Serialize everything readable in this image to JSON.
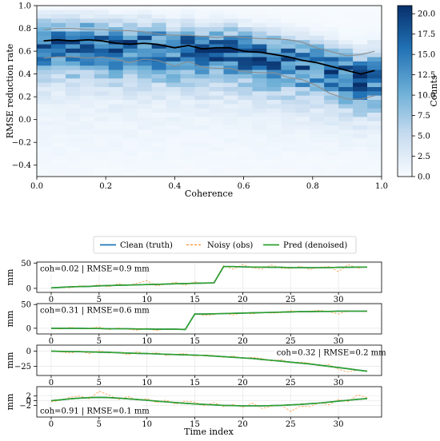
{
  "chart_data": [
    {
      "type": "heatmap",
      "xlabel": "Coherence",
      "ylabel": "RMSE reduction rate",
      "xlim": [
        0.0,
        1.0
      ],
      "ylim": [
        -0.5,
        1.0
      ],
      "xticks": [
        "0.0",
        "0.2",
        "0.4",
        "0.6",
        "0.8",
        "1.0"
      ],
      "yticks": [
        "-0.4",
        "-0.2",
        "0.0",
        "0.2",
        "0.4",
        "0.6",
        "0.8",
        "1.0"
      ],
      "x_bins": 24,
      "y_bins": 40,
      "colorbar": {
        "label": "Counts",
        "range": [
          0,
          21
        ],
        "ticks": [
          "0.0",
          "2.5",
          "5.0",
          "7.5",
          "10.0",
          "12.5",
          "15.0",
          "17.5",
          "20.0"
        ],
        "colormap": "Blues"
      },
      "series": [
        {
          "name": "median",
          "color": "#000000",
          "x": [
            0.02,
            0.06,
            0.1,
            0.15,
            0.19,
            0.23,
            0.27,
            0.31,
            0.35,
            0.4,
            0.44,
            0.48,
            0.52,
            0.56,
            0.6,
            0.65,
            0.69,
            0.73,
            0.77,
            0.81,
            0.85,
            0.9,
            0.94,
            0.98
          ],
          "y": [
            0.69,
            0.7,
            0.69,
            0.7,
            0.69,
            0.67,
            0.66,
            0.67,
            0.66,
            0.63,
            0.65,
            0.62,
            0.63,
            0.63,
            0.6,
            0.59,
            0.57,
            0.55,
            0.52,
            0.5,
            0.47,
            0.43,
            0.4,
            0.43
          ]
        },
        {
          "name": "upper quantile",
          "color": "#8c8c8c",
          "x": [
            0.02,
            0.06,
            0.1,
            0.15,
            0.19,
            0.23,
            0.27,
            0.31,
            0.35,
            0.4,
            0.44,
            0.48,
            0.52,
            0.56,
            0.6,
            0.65,
            0.69,
            0.73,
            0.77,
            0.81,
            0.85,
            0.9,
            0.94,
            0.98
          ],
          "y": [
            0.79,
            0.8,
            0.8,
            0.79,
            0.79,
            0.78,
            0.78,
            0.77,
            0.75,
            0.74,
            0.74,
            0.73,
            0.72,
            0.73,
            0.72,
            0.71,
            0.71,
            0.7,
            0.68,
            0.63,
            0.6,
            0.56,
            0.57,
            0.6
          ]
        },
        {
          "name": "lower quantile",
          "color": "#8c8c8c",
          "x": [
            0.02,
            0.06,
            0.1,
            0.15,
            0.19,
            0.23,
            0.27,
            0.31,
            0.35,
            0.4,
            0.44,
            0.48,
            0.52,
            0.56,
            0.6,
            0.65,
            0.69,
            0.73,
            0.77,
            0.81,
            0.85,
            0.9,
            0.94,
            0.98
          ],
          "y": [
            0.54,
            0.55,
            0.55,
            0.54,
            0.55,
            0.53,
            0.5,
            0.53,
            0.52,
            0.47,
            0.51,
            0.46,
            0.45,
            0.45,
            0.42,
            0.41,
            0.41,
            0.37,
            0.35,
            0.3,
            0.23,
            0.18,
            0.18,
            0.21
          ]
        }
      ]
    },
    {
      "type": "line",
      "legend": {
        "placement": "top-center",
        "entries": [
          {
            "label": "Clean (truth)",
            "color": "#1f77b4",
            "style": "solid"
          },
          {
            "label": "Noisy (obs)",
            "color": "#ff7f0e",
            "style": "dashed"
          },
          {
            "label": "Pred (denoised)",
            "color": "#2ca02c",
            "style": "solid"
          }
        ]
      },
      "xlabel": "Time index",
      "xlim": [
        -1.5,
        34.5
      ],
      "xticks": [
        "0",
        "5",
        "10",
        "15",
        "20",
        "25",
        "30"
      ],
      "panels": [
        {
          "annotation": "coh=0.02 | RMSE=0.9 mm",
          "annotation_placement": "top-left",
          "ylabel": "mm",
          "ylim": [
            -8,
            52
          ],
          "yticks": [
            "0",
            "50"
          ],
          "x": [
            0,
            1,
            2,
            3,
            4,
            5,
            6,
            7,
            8,
            9,
            10,
            11,
            12,
            13,
            14,
            15,
            16,
            17,
            18,
            19,
            20,
            21,
            22,
            23,
            24,
            25,
            26,
            27,
            28,
            29,
            30,
            31,
            32,
            33
          ],
          "clean": [
            1,
            2,
            3,
            3.5,
            4,
            5,
            5.5,
            6,
            6.5,
            7,
            7.5,
            8,
            8.5,
            9,
            9.5,
            10,
            10.5,
            11,
            43,
            43,
            42.5,
            42,
            42,
            41.5,
            41.5,
            41,
            41,
            41,
            41,
            41,
            41.5,
            41.5,
            42,
            42
          ],
          "noisy": [
            0,
            3,
            1,
            5,
            4,
            7,
            3,
            9,
            6,
            10,
            15,
            5,
            8,
            12,
            6,
            13,
            9,
            12,
            45,
            38,
            47,
            41,
            38,
            46,
            40,
            39,
            44,
            37,
            42,
            43,
            33,
            47,
            40,
            43
          ],
          "pred": [
            1,
            2,
            3,
            3.5,
            4,
            5,
            5.5,
            6,
            6.5,
            7,
            7.5,
            8,
            8.5,
            9,
            9.5,
            10,
            10.5,
            11,
            43,
            43,
            42.5,
            42,
            42,
            41.5,
            41.5,
            41,
            41,
            41,
            41,
            41,
            41.5,
            41.5,
            42,
            42
          ]
        },
        {
          "annotation": "coh=0.31 | RMSE=0.6 mm",
          "annotation_placement": "top-left",
          "ylabel": "mm",
          "ylim": [
            -12,
            52
          ],
          "yticks": [
            "0",
            "50"
          ],
          "x": [
            0,
            1,
            2,
            3,
            4,
            5,
            6,
            7,
            8,
            9,
            10,
            11,
            12,
            13,
            14,
            15,
            16,
            17,
            18,
            19,
            20,
            21,
            22,
            23,
            24,
            25,
            26,
            27,
            28,
            29,
            30,
            31,
            32,
            33
          ],
          "clean": [
            0,
            0,
            0,
            0,
            -0.5,
            -0.5,
            -1,
            -1,
            -1,
            -1.5,
            -1.5,
            -2,
            -2,
            -2,
            -2.5,
            30,
            30,
            30.5,
            31,
            31.5,
            32,
            32.5,
            33,
            33.5,
            34,
            34.5,
            35,
            35,
            35.5,
            35.5,
            36,
            36,
            36,
            36
          ],
          "noisy": [
            1,
            -2,
            2,
            -1,
            0,
            3,
            -3,
            1,
            -2,
            -4,
            0,
            -5,
            -1,
            -3,
            -2,
            31,
            27,
            29,
            32,
            28,
            33,
            30,
            34,
            32,
            33,
            37,
            34,
            36,
            38,
            35,
            30,
            37,
            36,
            35
          ],
          "pred": [
            0,
            0,
            0,
            0,
            -0.5,
            -0.5,
            -1,
            -1,
            -1,
            -1.5,
            -1.5,
            -2,
            -2,
            -2,
            -2.5,
            30,
            30,
            30.5,
            31,
            31.5,
            32,
            32.5,
            33,
            33.5,
            34,
            34.5,
            35,
            35,
            35.5,
            35.5,
            36,
            36,
            36,
            36
          ]
        },
        {
          "annotation": "coh=0.32 | RMSE=0.2 mm",
          "annotation_placement": "right",
          "ylabel": "mm",
          "ylim": [
            -40,
            10
          ],
          "yticks": [
            "0",
            "-25"
          ],
          "x": [
            0,
            1,
            2,
            3,
            4,
            5,
            6,
            7,
            8,
            9,
            10,
            11,
            12,
            13,
            14,
            15,
            16,
            17,
            18,
            19,
            20,
            21,
            22,
            23,
            24,
            25,
            26,
            27,
            28,
            29,
            30,
            31,
            32,
            33
          ],
          "clean": [
            0,
            -0.2,
            -0.5,
            -0.8,
            -1.2,
            -1.6,
            -2,
            -2.5,
            -3,
            -3.5,
            -4,
            -4.5,
            -5,
            -5.5,
            -6,
            -6.5,
            -7,
            -8,
            -9,
            -10,
            -11,
            -12,
            -13.5,
            -15,
            -16.5,
            -18,
            -19.5,
            -21,
            -23,
            -25,
            -27,
            -29,
            -31,
            -33
          ],
          "noisy": [
            0,
            -1,
            -3,
            0,
            -4,
            1,
            -3,
            -2,
            -6,
            -1,
            -5,
            -2,
            -7,
            -5,
            -4,
            -8,
            -6,
            -7,
            -10,
            -8,
            -12,
            -10,
            -12,
            -16,
            -14,
            -19,
            -18,
            -20,
            -24,
            -22,
            -30,
            -34,
            -31,
            -33
          ],
          "pred": [
            0,
            -0.2,
            -0.5,
            -0.8,
            -1.2,
            -1.6,
            -2,
            -2.5,
            -3,
            -3.5,
            -4,
            -4.5,
            -5,
            -5.5,
            -6,
            -6.5,
            -7,
            -8,
            -9,
            -10,
            -11,
            -12,
            -13.5,
            -15,
            -16.5,
            -18,
            -19.5,
            -21,
            -23,
            -25,
            -27,
            -29,
            -31,
            -33
          ]
        },
        {
          "annotation": "coh=0.91 | RMSE=0.1 mm",
          "annotation_placement": "bottom-left",
          "ylabel": "mm",
          "ylim": [
            -7,
            6
          ],
          "yticks": [
            "2",
            "0",
            "-2"
          ],
          "x": [
            0,
            1,
            2,
            3,
            4,
            5,
            6,
            7,
            8,
            9,
            10,
            11,
            12,
            13,
            14,
            15,
            16,
            17,
            18,
            19,
            20,
            21,
            22,
            23,
            24,
            25,
            26,
            27,
            28,
            29,
            30,
            31,
            32,
            33
          ],
          "clean": [
            0,
            0.4,
            0.8,
            1.1,
            1.3,
            1.4,
            1.3,
            1.1,
            0.8,
            0.5,
            0.2,
            -0.2,
            -0.5,
            -0.8,
            -1.1,
            -1.4,
            -1.6,
            -1.8,
            -2,
            -2.1,
            -2.2,
            -2.2,
            -2.2,
            -2.1,
            -2,
            -1.8,
            -1.6,
            -1.3,
            -1,
            -0.6,
            -0.2,
            0.2,
            0.6,
            0.9
          ],
          "noisy": [
            -0.5,
            0.2,
            1.5,
            2,
            0.8,
            4,
            2.5,
            0.5,
            1.8,
            0.2,
            0.9,
            -0.8,
            0.3,
            -1.5,
            -0.2,
            -0.6,
            -2.2,
            -0.8,
            -2.5,
            -1.6,
            -2.8,
            -1,
            -3.3,
            -2.4,
            -1.8,
            -4.6,
            -2.3,
            -2.6,
            -0.8,
            -1.8,
            0.5,
            -0.4,
            2.5,
            1.3
          ],
          "pred": [
            0,
            0.4,
            0.8,
            1.1,
            1.3,
            1.4,
            1.3,
            1.1,
            0.8,
            0.5,
            0.2,
            -0.2,
            -0.5,
            -0.8,
            -1.1,
            -1.4,
            -1.6,
            -1.8,
            -2,
            -2.1,
            -2.2,
            -2.2,
            -2.2,
            -2.1,
            -2,
            -1.8,
            -1.6,
            -1.3,
            -1,
            -0.6,
            -0.2,
            0.2,
            0.6,
            0.9
          ]
        }
      ]
    }
  ]
}
